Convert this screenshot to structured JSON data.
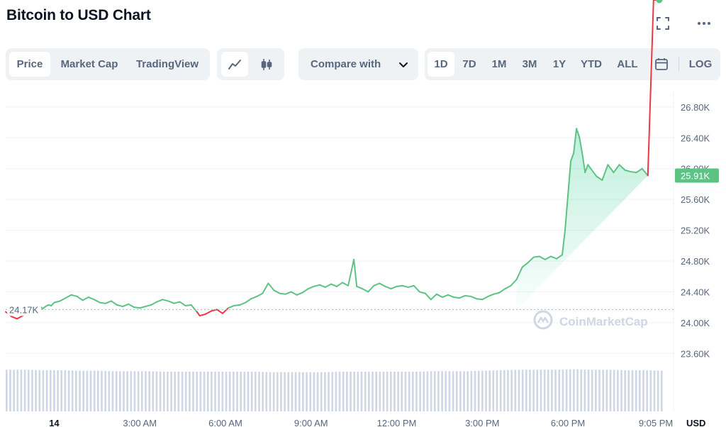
{
  "header": {
    "title": "Bitcoin to USD Chart"
  },
  "icons": {
    "expand": "expand-icon",
    "more": "more-horizontal-icon"
  },
  "toolbar": {
    "tabs": [
      {
        "label": "Price",
        "active": true
      },
      {
        "label": "Market Cap",
        "active": false
      },
      {
        "label": "TradingView",
        "active": false
      }
    ],
    "chart_types": [
      {
        "icon": "line-chart-icon",
        "active": true
      },
      {
        "icon": "candlestick-icon",
        "active": false
      }
    ],
    "compare_label": "Compare with",
    "ranges": [
      {
        "label": "1D",
        "active": true
      },
      {
        "label": "7D",
        "active": false
      },
      {
        "label": "1M",
        "active": false
      },
      {
        "label": "3M",
        "active": false
      },
      {
        "label": "1Y",
        "active": false
      },
      {
        "label": "YTD",
        "active": false
      },
      {
        "label": "ALL",
        "active": false
      }
    ],
    "log_label": "LOG"
  },
  "chart_data": {
    "type": "area",
    "title": "",
    "y_tick_labels": [
      "26.80K",
      "26.40K",
      "26.00K",
      "25.60K",
      "25.20K",
      "24.80K",
      "24.40K",
      "24.00K",
      "23.60K"
    ],
    "y_ticks": [
      26800,
      26400,
      26000,
      25600,
      25200,
      24800,
      24400,
      24000,
      23600
    ],
    "ylim": [
      23400,
      26900
    ],
    "x_tick_labels": [
      "14",
      "3:00 AM",
      "6:00 AM",
      "9:00 AM",
      "12:00 PM",
      "3:00 PM",
      "6:00 PM",
      "9:05 PM"
    ],
    "x_ticks_hours": [
      0,
      3,
      6,
      9,
      12,
      15,
      18,
      21.08
    ],
    "xlim_hours": [
      -1.7,
      21.7
    ],
    "reference_price_label": "24.17K",
    "reference_price": 24170,
    "current_price_label": "25.91K",
    "current_price": 25910,
    "currency_label": "USD",
    "watermark": "CoinMarketCap",
    "colors": {
      "up": "#16c784",
      "down": "#ea3943",
      "line_up": "#5dc383",
      "line_down": "#ea3943",
      "badge": "#5dc383",
      "grid": "#eff2f5",
      "volume": "#cfd6e4"
    },
    "series": [
      {
        "x": [
          -1.7,
          -1.5,
          -1.3,
          -1.1,
          -0.9,
          -0.7,
          -0.5,
          -0.4,
          -0.3,
          -0.2,
          -0.1,
          0.0,
          0.2,
          0.4,
          0.6,
          0.8,
          1.0,
          1.2,
          1.4,
          1.6,
          1.8,
          2.0,
          2.2,
          2.4,
          2.6,
          2.8,
          3.0,
          3.2,
          3.4,
          3.6,
          3.8,
          4.0,
          4.2,
          4.4,
          4.6,
          4.8,
          5.0,
          5.1,
          5.3,
          5.5,
          5.7,
          5.9,
          6.1,
          6.3,
          6.5,
          6.7,
          6.9,
          7.1,
          7.3,
          7.5,
          7.7,
          7.9,
          8.1,
          8.3,
          8.5,
          8.7,
          8.9,
          9.1,
          9.3,
          9.5,
          9.7,
          9.9,
          10.1,
          10.3,
          10.5,
          10.6,
          10.8,
          11.0,
          11.2,
          11.4,
          11.6,
          11.8,
          12.0,
          12.2,
          12.4,
          12.6,
          12.8,
          13.0,
          13.2,
          13.4,
          13.6,
          13.8,
          14.0,
          14.2,
          14.4,
          14.6,
          14.8,
          15.0,
          15.2,
          15.4,
          15.6,
          15.8,
          16.0,
          16.2,
          16.4,
          16.6,
          16.8,
          17.0,
          17.2,
          17.4,
          17.6,
          17.8,
          17.9,
          18.0,
          18.1,
          18.2,
          18.3,
          18.4,
          18.5,
          18.6,
          18.7,
          18.8,
          19.0,
          19.2,
          19.4,
          19.6,
          19.8,
          20.0,
          20.2,
          20.4,
          20.6,
          20.8,
          21.0,
          21.2
        ],
        "price": [
          24140,
          24080,
          24050,
          24090,
          24150,
          24200,
          24210,
          24180,
          24210,
          24230,
          24220,
          24260,
          24280,
          24320,
          24360,
          24340,
          24290,
          24330,
          24300,
          24260,
          24250,
          24280,
          24230,
          24210,
          24240,
          24200,
          24190,
          24210,
          24230,
          24270,
          24300,
          24280,
          24250,
          24270,
          24220,
          24230,
          24140,
          24090,
          24110,
          24150,
          24170,
          24120,
          24190,
          24220,
          24230,
          24260,
          24310,
          24340,
          24380,
          24510,
          24420,
          24380,
          24370,
          24400,
          24360,
          24390,
          24440,
          24470,
          24490,
          24460,
          24500,
          24470,
          24520,
          24480,
          24820,
          24470,
          24440,
          24400,
          24480,
          24510,
          24470,
          24440,
          24470,
          24480,
          24460,
          24480,
          24400,
          24380,
          24300,
          24370,
          24330,
          24360,
          24330,
          24320,
          24350,
          24340,
          24310,
          24300,
          24340,
          24370,
          24390,
          24440,
          24480,
          24560,
          24720,
          24780,
          24850,
          24860,
          24820,
          24860,
          24830,
          24880,
          25200,
          25650,
          26100,
          26200,
          26520,
          26410,
          26200,
          25950,
          26050,
          26000,
          25900,
          25850,
          26050,
          25950,
          26050,
          25980,
          25960,
          25950,
          26000,
          25910
        ]
      }
    ],
    "volume": [
      0.84,
      0.84,
      0.83,
      0.83,
      0.82,
      0.82,
      0.81,
      0.81,
      0.81,
      0.8,
      0.8,
      0.8,
      0.8,
      0.8,
      0.8,
      0.79,
      0.79,
      0.79,
      0.79,
      0.8,
      0.8,
      0.8,
      0.8,
      0.8,
      0.81,
      0.81,
      0.81,
      0.82,
      0.83,
      0.84,
      0.84,
      0.84,
      0.85,
      0.84,
      0.84,
      0.83,
      0.83,
      0.82
    ]
  }
}
